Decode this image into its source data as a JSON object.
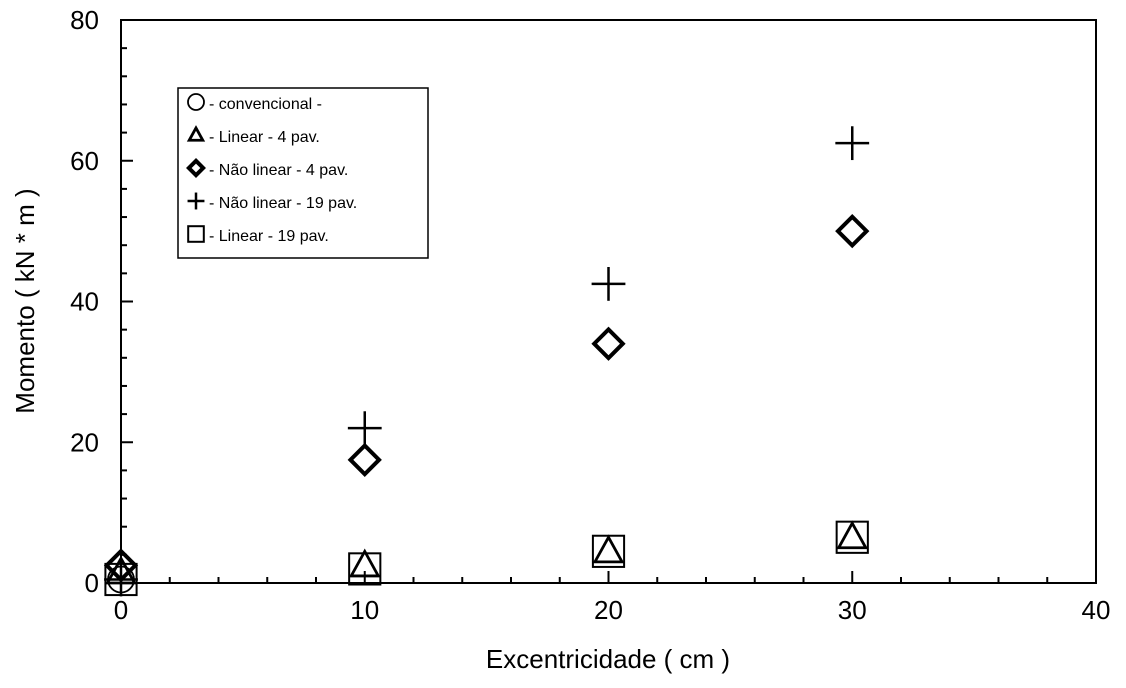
{
  "chart_data": {
    "type": "scatter",
    "xlabel": "Excentricidade ( cm )",
    "ylabel": "Momento ( kN * m )",
    "xlim": [
      0,
      40
    ],
    "ylim": [
      0,
      80
    ],
    "xticks": [
      0,
      10,
      20,
      30,
      40
    ],
    "yticks": [
      0,
      20,
      40,
      60,
      80
    ],
    "grid": false,
    "legend_position": "top-left",
    "series": [
      {
        "name": "- convencional -",
        "marker": "circle",
        "x": [
          0
        ],
        "y": [
          0.5
        ]
      },
      {
        "name": "- Linear - 4 pav.",
        "marker": "triangle",
        "x": [
          0,
          10,
          20,
          30
        ],
        "y": [
          1.5,
          2.5,
          4.5,
          6.5
        ]
      },
      {
        "name": "- Não linear - 4 pav.",
        "marker": "diamond",
        "x": [
          0,
          10,
          20,
          30
        ],
        "y": [
          2.5,
          17.5,
          34,
          50
        ]
      },
      {
        "name": "- Não linear - 19 pav.",
        "marker": "plus",
        "x": [
          0,
          10,
          20,
          30
        ],
        "y": [
          0.5,
          22,
          42.5,
          62.5
        ]
      },
      {
        "name": "- Linear - 19 pav.",
        "marker": "square",
        "x": [
          0,
          10,
          20,
          30
        ],
        "y": [
          0.5,
          2,
          4.5,
          6.5
        ]
      }
    ]
  }
}
